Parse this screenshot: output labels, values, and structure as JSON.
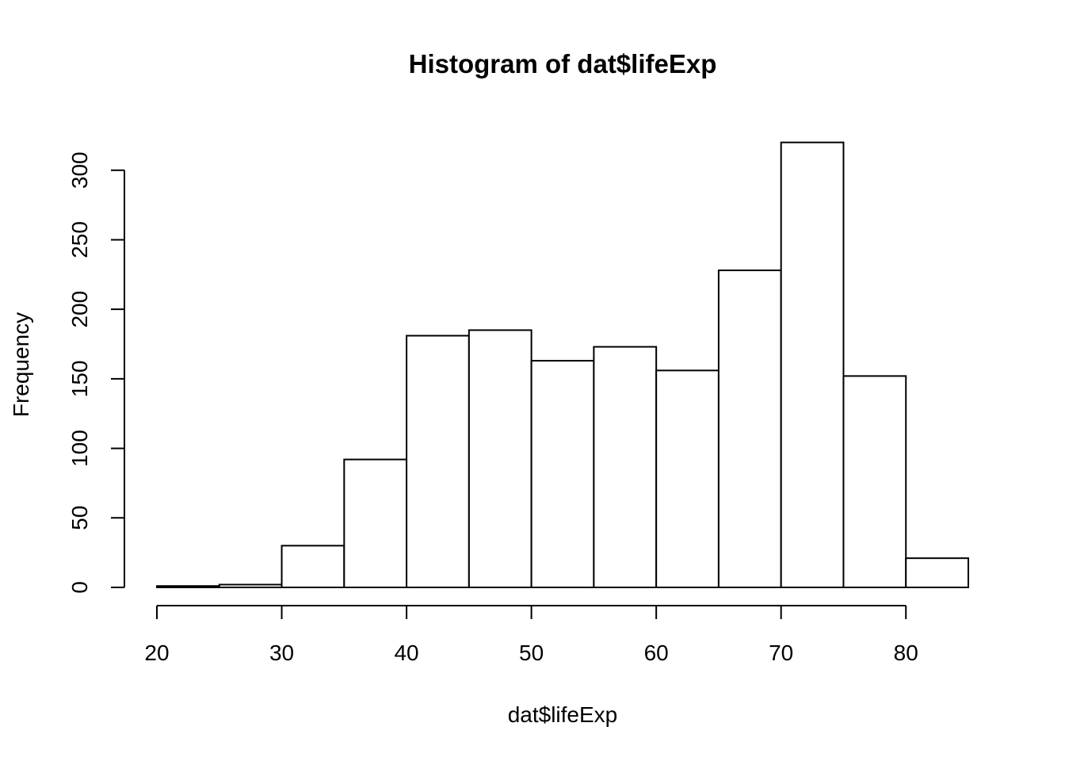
{
  "chart_data": {
    "type": "bar",
    "title": "Histogram of dat$lifeExp",
    "xlabel": "dat$lifeExp",
    "ylabel": "Frequency",
    "bin_edges": [
      20,
      25,
      30,
      35,
      40,
      45,
      50,
      55,
      60,
      65,
      70,
      75,
      80,
      85
    ],
    "values": [
      1,
      2,
      30,
      92,
      181,
      185,
      163,
      173,
      156,
      228,
      320,
      152,
      21
    ],
    "x_ticks": [
      20,
      30,
      40,
      50,
      60,
      70,
      80
    ],
    "y_ticks": [
      0,
      50,
      100,
      150,
      200,
      250,
      300
    ],
    "xlim": [
      20,
      85
    ],
    "ylim": [
      0,
      320
    ],
    "grid": false,
    "legend": "none",
    "colors": {
      "bar_fill": "#ffffff",
      "bar_stroke": "#000000"
    }
  }
}
